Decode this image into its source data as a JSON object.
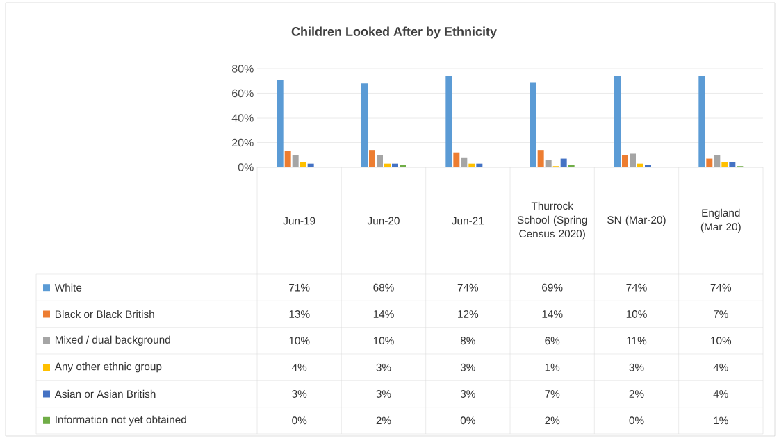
{
  "chart_data": {
    "type": "bar",
    "title": "Children Looked After by  Ethnicity",
    "categories": [
      "Jun-19",
      "Jun-20",
      "Jun-21",
      "Thurrock School (Spring Census 2020)",
      "SN (Mar-20)",
      "England (Mar 20)"
    ],
    "series": [
      {
        "name": "White",
        "color": "#5b9bd5",
        "values": [
          71,
          68,
          74,
          69,
          74,
          74
        ],
        "value_labels": [
          "71%",
          "68%",
          "74%",
          "69%",
          "74%",
          "74%"
        ]
      },
      {
        "name": "Black or Black British",
        "color": "#ed7d31",
        "values": [
          13,
          14,
          12,
          14,
          10,
          7
        ],
        "value_labels": [
          "13%",
          "14%",
          "12%",
          "14%",
          "10%",
          "7%"
        ]
      },
      {
        "name": "Mixed / dual background",
        "color": "#a5a5a5",
        "values": [
          10,
          10,
          8,
          6,
          11,
          10
        ],
        "value_labels": [
          "10%",
          "10%",
          "8%",
          "6%",
          "11%",
          "10%"
        ]
      },
      {
        "name": "Any other ethnic group",
        "color": "#ffc000",
        "values": [
          4,
          3,
          3,
          1,
          3,
          4
        ],
        "value_labels": [
          "4%",
          "3%",
          "3%",
          "1%",
          "3%",
          "4%"
        ]
      },
      {
        "name": "Asian or Asian British",
        "color": "#4472c4",
        "values": [
          3,
          3,
          3,
          7,
          2,
          4
        ],
        "value_labels": [
          "3%",
          "3%",
          "3%",
          "7%",
          "2%",
          "4%"
        ]
      },
      {
        "name": "Information not yet obtained",
        "color": "#70ad47",
        "values": [
          0,
          2,
          0,
          2,
          0,
          1
        ],
        "value_labels": [
          "0%",
          "2%",
          "0%",
          "2%",
          "0%",
          "1%"
        ]
      }
    ],
    "ylim": [
      0,
      80
    ],
    "yticks": [
      {
        "value": 0,
        "label": "0%"
      },
      {
        "value": 20,
        "label": "20%"
      },
      {
        "value": 40,
        "label": "40%"
      },
      {
        "value": 60,
        "label": "60%"
      },
      {
        "value": 80,
        "label": "80%"
      }
    ],
    "grid": "y",
    "legend": "bottom"
  }
}
